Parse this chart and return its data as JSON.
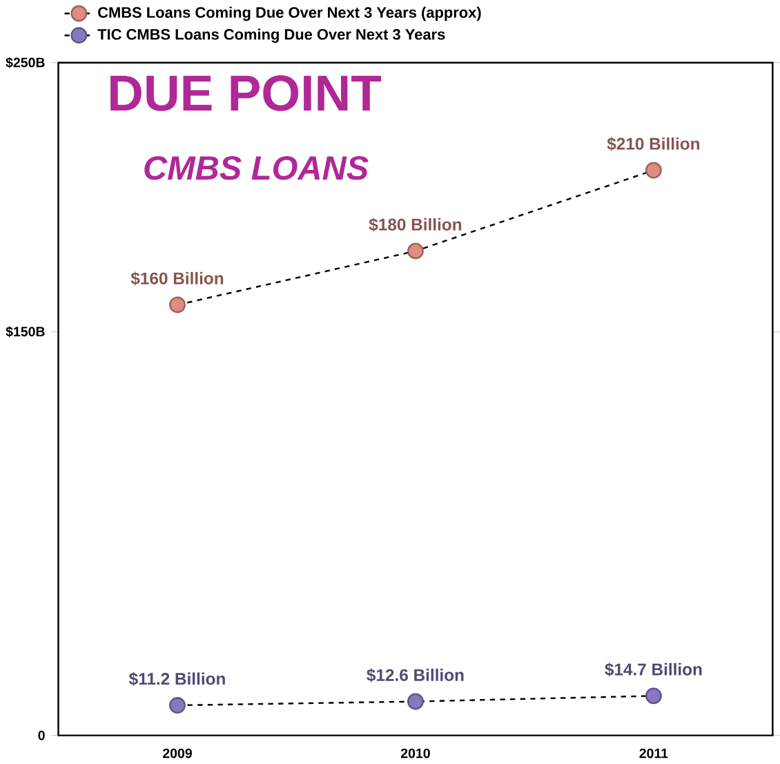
{
  "chart_data": {
    "type": "line",
    "title": "DUE POINT",
    "subtitle": "CMBS LOANS",
    "categories": [
      "2009",
      "2010",
      "2011"
    ],
    "series": [
      {
        "name": "CMBS Loans Coming Due Over Next 3 Years (approx)",
        "color": "#e08c80",
        "values": [
          160,
          180,
          210
        ],
        "value_labels": [
          "$160 Billion",
          "$180 Billion",
          "$210 Billion"
        ]
      },
      {
        "name": "TIC CMBS Loans Coming Due Over Next 3 Years",
        "color": "#8878c0",
        "values": [
          11.2,
          12.6,
          14.7
        ],
        "value_labels": [
          "$11.2 Billion",
          "$12.6 Billion",
          "$14.7 Billion"
        ]
      }
    ],
    "ylim": [
      0,
      250
    ],
    "yticks": [
      {
        "value": 0,
        "label": "0"
      },
      {
        "value": 150,
        "label": "$150B"
      },
      {
        "value": 250,
        "label": "$250B"
      }
    ],
    "grid": false,
    "legend": "top left",
    "marker": "circle",
    "line_style": "dashed"
  }
}
